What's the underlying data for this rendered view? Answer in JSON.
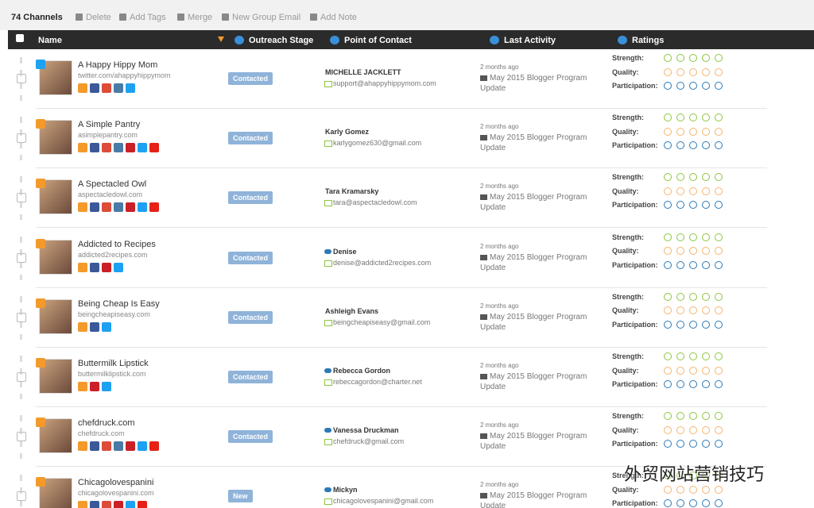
{
  "toolbar": {
    "count": "74 Channels",
    "actions": [
      "Delete",
      "Add Tags",
      "Merge",
      "New Group Email",
      "Add Note"
    ]
  },
  "header": {
    "columns": [
      "Name",
      "Outreach Stage",
      "Point of Contact",
      "Last Activity",
      "Ratings"
    ]
  },
  "rating_labels": [
    "Strength:",
    "Quality:",
    "Participation:"
  ],
  "rows": [
    {
      "name": "A Happy Hippy Mom",
      "url": "twitter.com/ahappyhippymom",
      "stage": "Contacted",
      "contact": "MICHELLE JACKLETT",
      "email": "support@ahappyhippymom.com",
      "time": "2 months ago",
      "activity": "May 2015 Blogger Program Update"
    },
    {
      "name": "A Simple Pantry",
      "url": "asimplepantry.com",
      "stage": "Contacted",
      "contact": "Karly Gomez",
      "email": "karlygomez630@gmail.com",
      "time": "2 months ago",
      "activity": "May 2015 Blogger Program Update"
    },
    {
      "name": "A Spectacled Owl",
      "url": "aspectacledowl.com",
      "stage": "Contacted",
      "contact": "Tara Kramarsky",
      "email": "tara@aspectacledowl.com",
      "time": "2 months ago",
      "activity": "May 2015 Blogger Program Update"
    },
    {
      "name": "Addicted to Recipes",
      "url": "addicted2recipes.com",
      "stage": "Contacted",
      "contact": "Denise",
      "email": "denise@addicted2recipes.com",
      "time": "2 months ago",
      "activity": "May 2015 Blogger Program Update"
    },
    {
      "name": "Being Cheap Is Easy",
      "url": "beingcheapiseasy.com",
      "stage": "Contacted",
      "contact": "Ashleigh Evans",
      "email": "beingcheapiseasy@gmail.com",
      "time": "2 months ago",
      "activity": "May 2015 Blogger Program Update"
    },
    {
      "name": "Buttermilk Lipstick",
      "url": "buttermilklipstick.com",
      "stage": "Contacted",
      "contact": "Rebecca Gordon",
      "email": "rebeccagordon@charter.net",
      "time": "2 months ago",
      "activity": "May 2015 Blogger Program Update"
    },
    {
      "name": "chefdruck.com",
      "url": "chefdruck.com",
      "stage": "Contacted",
      "contact": "Vanessa Druckman",
      "email": "chefdruck@gmail.com",
      "time": "2 months ago",
      "activity": "May 2015 Blogger Program Update"
    },
    {
      "name": "Chicagolovespanini",
      "url": "chicagolovespanini.com",
      "stage": "New",
      "contact": "Mickyn",
      "email": "chicagolovespanini@gmail.com",
      "time": "2 months ago",
      "activity": "May 2015 Blogger Program Update"
    }
  ],
  "watermark": "外贸网站营销技巧"
}
